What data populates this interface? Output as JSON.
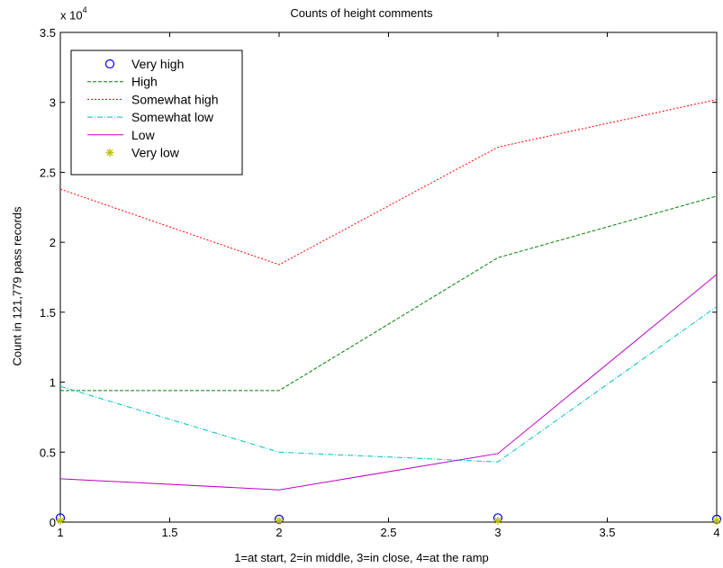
{
  "chart_data": {
    "type": "line",
    "title": "Counts of height comments",
    "xlabel": "1=at start, 2=in middle, 3=in close, 4=at the ramp",
    "ylabel": "Count in 121,779 pass records",
    "y_multiplier_base": "x 10",
    "y_multiplier_exp": "4",
    "xlim": [
      1,
      4
    ],
    "ylim": [
      0,
      3.5
    ],
    "x_ticks": [
      1,
      1.5,
      2,
      2.5,
      3,
      3.5,
      4
    ],
    "x_tick_labels": [
      "1",
      "1.5",
      "2",
      "2.5",
      "3",
      "3.5",
      "4"
    ],
    "y_ticks": [
      0,
      0.5,
      1,
      1.5,
      2,
      2.5,
      3,
      3.5
    ],
    "y_tick_labels": [
      "0",
      "0.5",
      "1",
      "1.5",
      "2",
      "2.5",
      "3",
      "3.5"
    ],
    "grid": false,
    "legend_position": "top-left",
    "x": [
      1,
      2,
      3,
      4
    ],
    "series": [
      {
        "name": "Very high",
        "values": [
          0.03,
          0.02,
          0.03,
          0.02
        ],
        "color": "#0000ff",
        "style": "marker-circle"
      },
      {
        "name": "High",
        "values": [
          0.94,
          0.94,
          1.89,
          2.33
        ],
        "color": "#008000",
        "style": "dashed"
      },
      {
        "name": "Somewhat high",
        "values": [
          2.38,
          1.84,
          2.68,
          3.02
        ],
        "color": "#ff0000",
        "style": "dotted"
      },
      {
        "name": "Somewhat low",
        "values": [
          0.97,
          0.5,
          0.43,
          1.54
        ],
        "color": "#00bfbf",
        "style": "dashdot"
      },
      {
        "name": "Low",
        "values": [
          0.31,
          0.23,
          0.49,
          1.77
        ],
        "color": "#bf00bf",
        "style": "solid"
      },
      {
        "name": "Very low",
        "values": [
          0.01,
          0.01,
          0.01,
          0.01
        ],
        "color": "#bfbf00",
        "style": "marker-star"
      }
    ]
  }
}
